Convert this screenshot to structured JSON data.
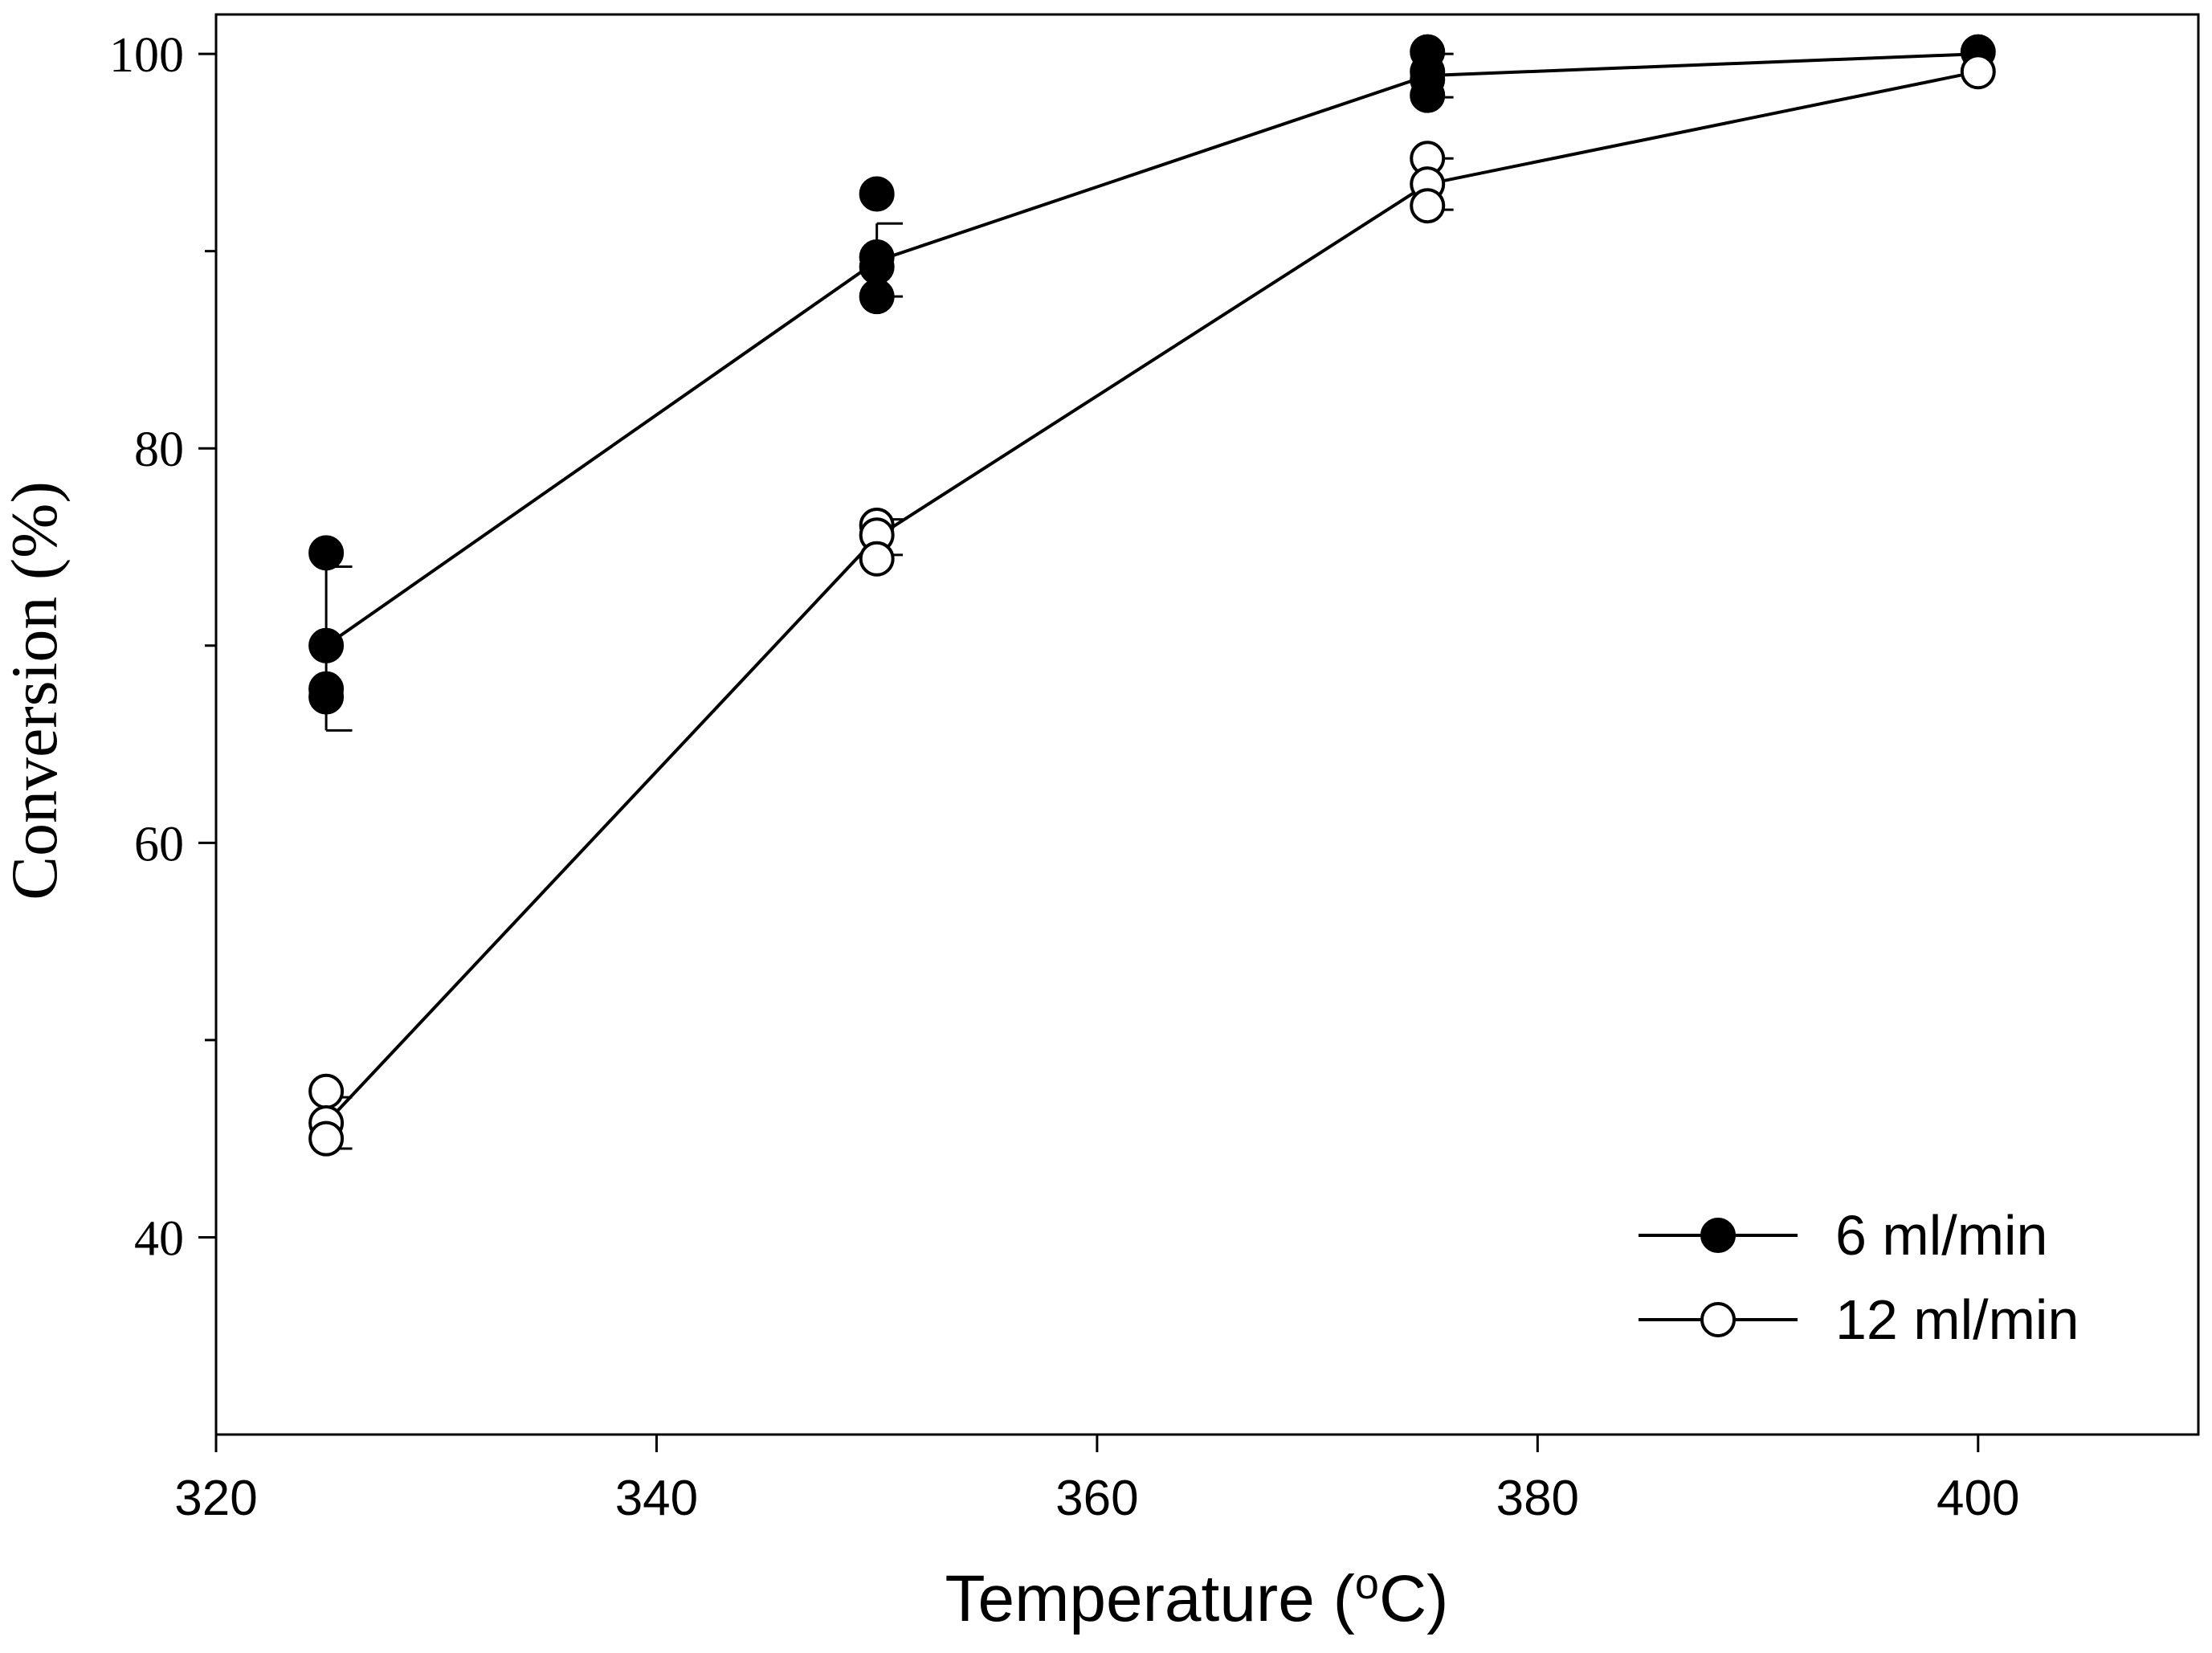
{
  "chart_data": {
    "type": "scatter",
    "title": "",
    "xlabel": "Temperature (",
    "xlabel_sup": "o",
    "xlabel_tail": "C)",
    "ylabel": "Conversion (%)",
    "xlim": [
      320,
      410
    ],
    "ylim": [
      30,
      102
    ],
    "xticks": [
      320,
      340,
      360,
      380,
      400
    ],
    "xtick_labels": [
      "320",
      "340",
      "360",
      "380",
      "400"
    ],
    "yticks": [
      40,
      60,
      80,
      100
    ],
    "ytick_labels": [
      "40",
      "60",
      "80",
      "100"
    ],
    "yminor": [
      50,
      70,
      90
    ],
    "grid": false,
    "legend_position": "bottom-right",
    "series": [
      {
        "name": "6 ml/min",
        "marker": "filled-circle",
        "x": [
          325,
          350,
          375,
          400
        ],
        "mean": [
          70.0,
          89.5,
          98.9,
          100.0
        ],
        "err_low": [
          4.3,
          1.8,
          1.1,
          0.0
        ],
        "err_high": [
          4.0,
          1.9,
          1.1,
          0.0
        ],
        "points": [
          {
            "x": 325,
            "y": 74.7
          },
          {
            "x": 325,
            "y": 70.0
          },
          {
            "x": 325,
            "y": 67.8
          },
          {
            "x": 325,
            "y": 67.4
          },
          {
            "x": 350,
            "y": 92.9
          },
          {
            "x": 350,
            "y": 89.7
          },
          {
            "x": 350,
            "y": 89.2
          },
          {
            "x": 350,
            "y": 87.7
          },
          {
            "x": 375,
            "y": 100.1
          },
          {
            "x": 375,
            "y": 99.1
          },
          {
            "x": 375,
            "y": 98.7
          },
          {
            "x": 375,
            "y": 97.9
          },
          {
            "x": 400,
            "y": 100.1
          }
        ]
      },
      {
        "name": "12 ml/min",
        "marker": "open-circle",
        "x": [
          325,
          350,
          375,
          400
        ],
        "mean": [
          45.8,
          75.5,
          93.4,
          99.1
        ],
        "err_low": [
          1.3,
          0.9,
          1.3,
          0.0
        ],
        "err_high": [
          1.3,
          0.9,
          1.3,
          0.0
        ],
        "points": [
          {
            "x": 325,
            "y": 47.4
          },
          {
            "x": 325,
            "y": 45.8
          },
          {
            "x": 325,
            "y": 45.0
          },
          {
            "x": 350,
            "y": 76.1
          },
          {
            "x": 350,
            "y": 75.6
          },
          {
            "x": 350,
            "y": 74.4
          },
          {
            "x": 375,
            "y": 94.7
          },
          {
            "x": 375,
            "y": 93.4
          },
          {
            "x": 375,
            "y": 92.3
          },
          {
            "x": 400,
            "y": 99.1
          }
        ]
      }
    ]
  }
}
